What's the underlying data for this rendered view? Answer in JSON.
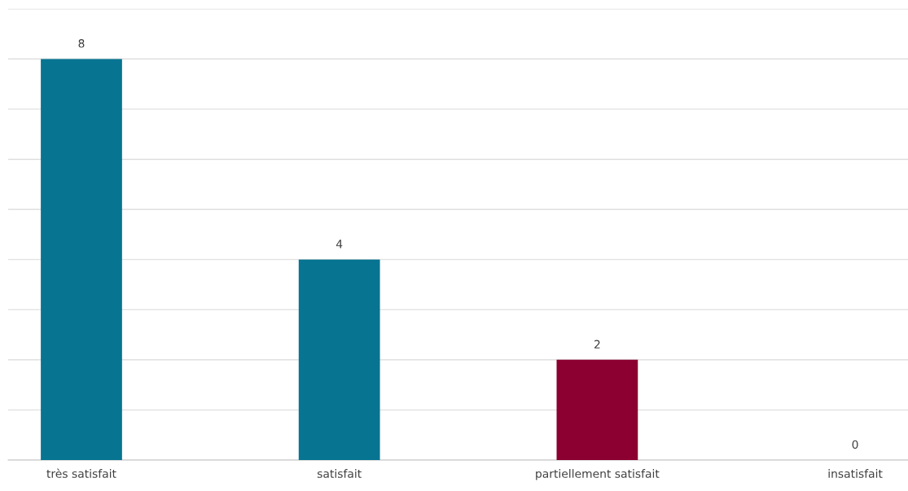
{
  "chart_data": {
    "type": "bar",
    "categories": [
      "très satisfait",
      "satisfait",
      "partiellement satisfait",
      "insatisfait"
    ],
    "values": [
      8,
      4,
      2,
      0
    ],
    "colors": [
      "#077591",
      "#077591",
      "#8b0030",
      "#077591"
    ],
    "ylim": [
      0,
      9
    ],
    "yticks": [
      {
        "value": 0,
        "label": null
      },
      {
        "value": 1,
        "label": null
      },
      {
        "value": 2,
        "label": null
      },
      {
        "value": 3,
        "label": null
      },
      {
        "value": 4,
        "label": null
      },
      {
        "value": 5,
        "label": null
      },
      {
        "value": 6,
        "label": null
      },
      {
        "value": 7,
        "label": null
      },
      {
        "value": 8,
        "label": null
      },
      {
        "value": 9,
        "label": null
      }
    ],
    "grid": "y",
    "tick_labels": "x",
    "data_labels": true
  }
}
